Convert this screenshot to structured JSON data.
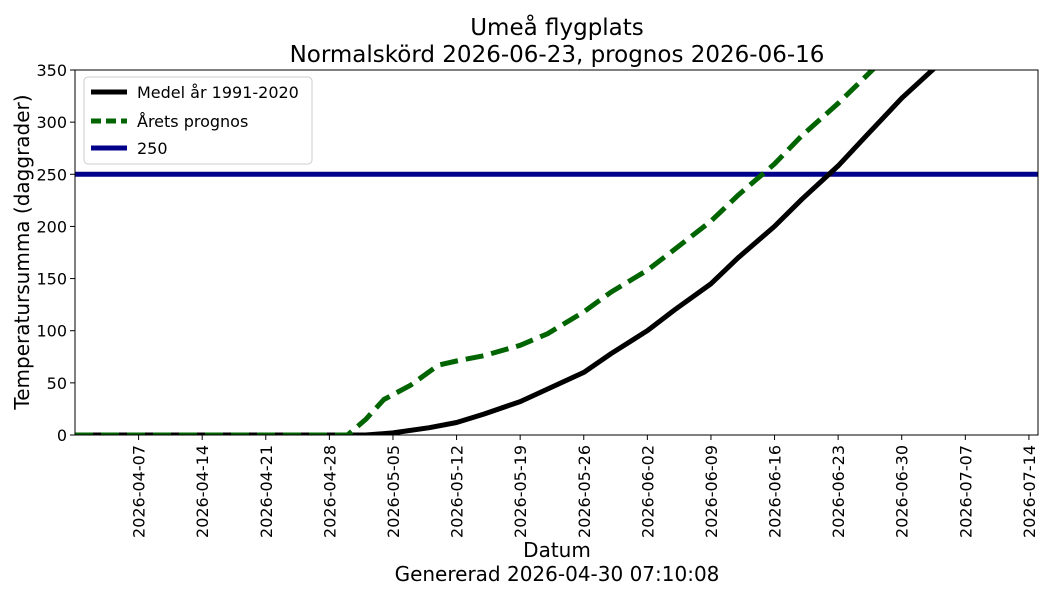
{
  "chart_data": {
    "type": "line",
    "title": "Umeå flygplats",
    "subtitle": "Normalskörd 2026-06-23, prognos 2026-06-16",
    "xlabel": "Datum",
    "ylabel": "Temperatursumma (daggrader)",
    "footer": "Genererad 2026-04-30 07:10:08",
    "x_range": [
      "2026-03-31",
      "2026-07-15"
    ],
    "ylim": [
      0,
      350
    ],
    "x_ticks": [
      "2026-04-07",
      "2026-04-14",
      "2026-04-21",
      "2026-04-28",
      "2026-05-05",
      "2026-05-12",
      "2026-05-19",
      "2026-05-26",
      "2026-06-02",
      "2026-06-09",
      "2026-06-16",
      "2026-06-23",
      "2026-06-30",
      "2026-07-07",
      "2026-07-14"
    ],
    "y_ticks": [
      0,
      50,
      100,
      150,
      200,
      250,
      300,
      350
    ],
    "legend_position": "top-left",
    "series": [
      {
        "name": "Medel år 1991-2020",
        "color": "#000000",
        "style": "solid",
        "points": [
          [
            "2026-03-31",
            0
          ],
          [
            "2026-04-28",
            0
          ],
          [
            "2026-05-02",
            0
          ],
          [
            "2026-05-05",
            2
          ],
          [
            "2026-05-09",
            7
          ],
          [
            "2026-05-12",
            12
          ],
          [
            "2026-05-15",
            20
          ],
          [
            "2026-05-19",
            32
          ],
          [
            "2026-05-22",
            44
          ],
          [
            "2026-05-26",
            60
          ],
          [
            "2026-05-29",
            78
          ],
          [
            "2026-06-02",
            100
          ],
          [
            "2026-06-05",
            120
          ],
          [
            "2026-06-09",
            145
          ],
          [
            "2026-06-12",
            170
          ],
          [
            "2026-06-16",
            200
          ],
          [
            "2026-06-19",
            226
          ],
          [
            "2026-06-23",
            258
          ],
          [
            "2026-06-26",
            286
          ],
          [
            "2026-06-30",
            323
          ],
          [
            "2026-07-04",
            355
          ]
        ]
      },
      {
        "name": "Årets prognos",
        "color": "#006400",
        "style": "dashed",
        "points": [
          [
            "2026-03-31",
            0
          ],
          [
            "2026-04-30",
            0
          ],
          [
            "2026-05-02",
            15
          ],
          [
            "2026-05-04",
            34
          ],
          [
            "2026-05-07",
            48
          ],
          [
            "2026-05-10",
            67
          ],
          [
            "2026-05-12",
            71
          ],
          [
            "2026-05-15",
            76
          ],
          [
            "2026-05-19",
            86
          ],
          [
            "2026-05-22",
            97
          ],
          [
            "2026-05-26",
            118
          ],
          [
            "2026-05-29",
            137
          ],
          [
            "2026-06-02",
            158
          ],
          [
            "2026-06-05",
            178
          ],
          [
            "2026-06-09",
            205
          ],
          [
            "2026-06-12",
            230
          ],
          [
            "2026-06-16",
            260
          ],
          [
            "2026-06-19",
            287
          ],
          [
            "2026-06-23",
            318
          ],
          [
            "2026-06-27",
            352
          ]
        ]
      },
      {
        "name": "250",
        "color": "#00008b",
        "style": "solid",
        "points": [
          [
            "2026-03-31",
            250
          ],
          [
            "2026-07-15",
            250
          ]
        ]
      }
    ]
  }
}
